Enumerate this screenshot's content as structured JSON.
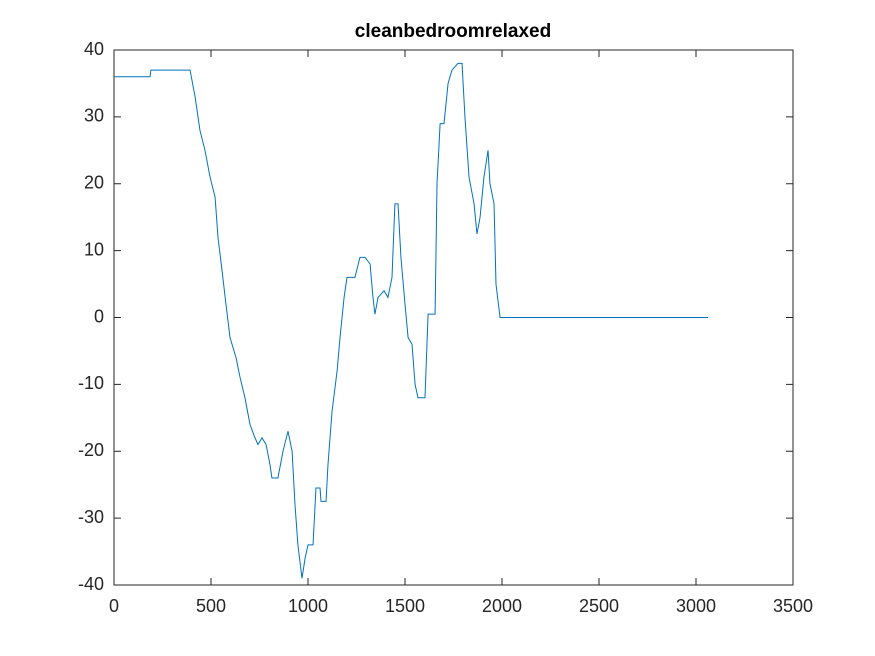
{
  "chart_data": {
    "type": "line",
    "title": "cleanbedroomrelaxed",
    "x": [
      0,
      186,
      190,
      392,
      418,
      443,
      469,
      495,
      521,
      536,
      557,
      577,
      598,
      629,
      650,
      675,
      701,
      727,
      742,
      763,
      784,
      804,
      814,
      845,
      871,
      897,
      918,
      933,
      948,
      969,
      985,
      1000,
      1026,
      1041,
      1062,
      1067,
      1093,
      1103,
      1124,
      1150,
      1165,
      1186,
      1201,
      1242,
      1268,
      1294,
      1320,
      1335,
      1345,
      1361,
      1392,
      1412,
      1433,
      1448,
      1464,
      1479,
      1500,
      1516,
      1536,
      1552,
      1567,
      1603,
      1619,
      1655,
      1665,
      1681,
      1701,
      1722,
      1742,
      1773,
      1794,
      1809,
      1830,
      1856,
      1871,
      1887,
      1907,
      1928,
      1938,
      1959,
      1969,
      1990,
      3062
    ],
    "series": [
      {
        "color": "#0072bd",
        "values": [
          36,
          36,
          37,
          37,
          33,
          28,
          25,
          21,
          18,
          12,
          7,
          2,
          -3,
          -6,
          -9,
          -12,
          -16,
          -18,
          -19,
          -18,
          -19,
          -22,
          -24,
          -24,
          -20,
          -17,
          -20,
          -28,
          -34,
          -39,
          -36,
          -34,
          -34,
          -25.5,
          -25.5,
          -27.5,
          -27.5,
          -22,
          -14,
          -8,
          -3,
          3,
          6,
          6,
          9,
          9,
          8,
          3,
          0.5,
          3,
          4,
          3,
          6,
          17,
          17,
          9,
          2,
          -3,
          -4,
          -10,
          -12,
          -12,
          0.5,
          0.5,
          20,
          29,
          29,
          35,
          37,
          38,
          38,
          30,
          21,
          17,
          12.5,
          15,
          21,
          25,
          20,
          17,
          5,
          0,
          0
        ]
      }
    ],
    "xlim": [
      0,
      3500
    ],
    "xticks": [
      0,
      500,
      1000,
      1500,
      2000,
      2500,
      3000,
      3500
    ],
    "ylim": [
      -40,
      40
    ],
    "yticks": [
      -40,
      -30,
      -20,
      -10,
      0,
      10,
      20,
      30,
      40
    ],
    "grid": false
  }
}
